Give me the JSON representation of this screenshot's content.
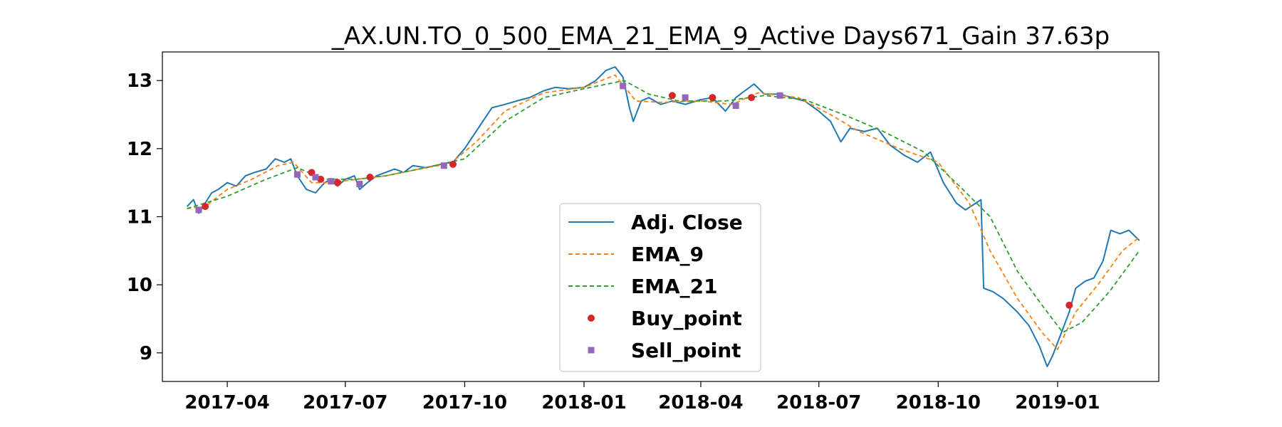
{
  "chart_data": {
    "type": "line",
    "title": "_AX.UN.TO_0_500_EMA_21_EMA_9_Active Days671_Gain  37.63p",
    "xlabel": "",
    "ylabel": "",
    "x_range": [
      "2017-02-10",
      "2019-03-20"
    ],
    "ylim": [
      8.58,
      13.42
    ],
    "y_ticks": [
      9,
      10,
      11,
      12,
      13
    ],
    "x_ticks": [
      "2017-04",
      "2017-07",
      "2017-10",
      "2018-01",
      "2018-04",
      "2018-07",
      "2018-10",
      "2019-01"
    ],
    "grid": false,
    "legend_position": "lower-center",
    "series": [
      {
        "name": "Adj. Close",
        "color": "#1f77b4",
        "style": "solid",
        "points": [
          [
            "2017-03-01",
            11.15
          ],
          [
            "2017-03-06",
            11.25
          ],
          [
            "2017-03-10",
            11.05
          ],
          [
            "2017-03-15",
            11.2
          ],
          [
            "2017-03-20",
            11.35
          ],
          [
            "2017-03-25",
            11.4
          ],
          [
            "2017-04-01",
            11.5
          ],
          [
            "2017-04-08",
            11.45
          ],
          [
            "2017-04-15",
            11.6
          ],
          [
            "2017-04-22",
            11.65
          ],
          [
            "2017-05-01",
            11.7
          ],
          [
            "2017-05-08",
            11.85
          ],
          [
            "2017-05-15",
            11.8
          ],
          [
            "2017-05-20",
            11.85
          ],
          [
            "2017-05-25",
            11.6
          ],
          [
            "2017-06-01",
            11.4
          ],
          [
            "2017-06-08",
            11.35
          ],
          [
            "2017-06-15",
            11.5
          ],
          [
            "2017-06-20",
            11.55
          ],
          [
            "2017-06-25",
            11.45
          ],
          [
            "2017-07-01",
            11.55
          ],
          [
            "2017-07-08",
            11.6
          ],
          [
            "2017-07-12",
            11.4
          ],
          [
            "2017-07-18",
            11.5
          ],
          [
            "2017-07-25",
            11.6
          ],
          [
            "2017-08-01",
            11.65
          ],
          [
            "2017-08-08",
            11.7
          ],
          [
            "2017-08-15",
            11.65
          ],
          [
            "2017-08-22",
            11.75
          ],
          [
            "2017-09-01",
            11.72
          ],
          [
            "2017-09-08",
            11.75
          ],
          [
            "2017-09-15",
            11.78
          ],
          [
            "2017-09-22",
            11.8
          ],
          [
            "2017-10-01",
            12.0
          ],
          [
            "2017-10-08",
            12.2
          ],
          [
            "2017-10-15",
            12.4
          ],
          [
            "2017-10-22",
            12.6
          ],
          [
            "2017-11-01",
            12.65
          ],
          [
            "2017-11-10",
            12.7
          ],
          [
            "2017-11-20",
            12.75
          ],
          [
            "2017-12-01",
            12.85
          ],
          [
            "2017-12-10",
            12.9
          ],
          [
            "2017-12-20",
            12.88
          ],
          [
            "2018-01-01",
            12.9
          ],
          [
            "2018-01-10",
            13.0
          ],
          [
            "2018-01-18",
            13.15
          ],
          [
            "2018-01-25",
            13.2
          ],
          [
            "2018-01-31",
            13.05
          ],
          [
            "2018-02-05",
            12.6
          ],
          [
            "2018-02-08",
            12.4
          ],
          [
            "2018-02-14",
            12.7
          ],
          [
            "2018-02-20",
            12.75
          ],
          [
            "2018-03-01",
            12.65
          ],
          [
            "2018-03-10",
            12.7
          ],
          [
            "2018-03-20",
            12.65
          ],
          [
            "2018-04-01",
            12.72
          ],
          [
            "2018-04-10",
            12.75
          ],
          [
            "2018-04-15",
            12.65
          ],
          [
            "2018-04-20",
            12.55
          ],
          [
            "2018-04-28",
            12.75
          ],
          [
            "2018-05-05",
            12.85
          ],
          [
            "2018-05-12",
            12.95
          ],
          [
            "2018-05-20",
            12.8
          ],
          [
            "2018-06-01",
            12.8
          ],
          [
            "2018-06-10",
            12.75
          ],
          [
            "2018-06-20",
            12.7
          ],
          [
            "2018-07-01",
            12.55
          ],
          [
            "2018-07-10",
            12.4
          ],
          [
            "2018-07-18",
            12.1
          ],
          [
            "2018-07-25",
            12.3
          ],
          [
            "2018-08-05",
            12.25
          ],
          [
            "2018-08-15",
            12.3
          ],
          [
            "2018-08-25",
            12.05
          ],
          [
            "2018-09-05",
            11.9
          ],
          [
            "2018-09-15",
            11.8
          ],
          [
            "2018-09-25",
            11.95
          ],
          [
            "2018-10-05",
            11.5
          ],
          [
            "2018-10-15",
            11.2
          ],
          [
            "2018-10-22",
            11.1
          ],
          [
            "2018-10-30",
            11.2
          ],
          [
            "2018-11-03",
            11.25
          ],
          [
            "2018-11-05",
            9.95
          ],
          [
            "2018-11-12",
            9.9
          ],
          [
            "2018-11-20",
            9.8
          ],
          [
            "2018-12-01",
            9.6
          ],
          [
            "2018-12-10",
            9.4
          ],
          [
            "2018-12-18",
            9.1
          ],
          [
            "2018-12-24",
            8.8
          ],
          [
            "2018-12-28",
            8.95
          ],
          [
            "2019-01-04",
            9.3
          ],
          [
            "2019-01-10",
            9.6
          ],
          [
            "2019-01-15",
            9.95
          ],
          [
            "2019-01-22",
            10.05
          ],
          [
            "2019-01-29",
            10.1
          ],
          [
            "2019-02-05",
            10.35
          ],
          [
            "2019-02-11",
            10.8
          ],
          [
            "2019-02-18",
            10.75
          ],
          [
            "2019-02-25",
            10.8
          ],
          [
            "2019-03-05",
            10.65
          ]
        ]
      },
      {
        "name": "EMA_9",
        "color": "#ff7f0e",
        "style": "dashed",
        "points": [
          [
            "2017-03-01",
            11.12
          ],
          [
            "2017-03-15",
            11.15
          ],
          [
            "2017-04-01",
            11.4
          ],
          [
            "2017-04-20",
            11.55
          ],
          [
            "2017-05-10",
            11.75
          ],
          [
            "2017-05-22",
            11.8
          ],
          [
            "2017-06-05",
            11.5
          ],
          [
            "2017-06-20",
            11.5
          ],
          [
            "2017-07-10",
            11.55
          ],
          [
            "2017-08-01",
            11.6
          ],
          [
            "2017-09-01",
            11.72
          ],
          [
            "2017-09-20",
            11.78
          ],
          [
            "2017-10-10",
            12.1
          ],
          [
            "2017-11-01",
            12.55
          ],
          [
            "2017-12-01",
            12.82
          ],
          [
            "2018-01-01",
            12.9
          ],
          [
            "2018-01-25",
            13.08
          ],
          [
            "2018-02-10",
            12.7
          ],
          [
            "2018-03-01",
            12.68
          ],
          [
            "2018-04-01",
            12.7
          ],
          [
            "2018-04-25",
            12.65
          ],
          [
            "2018-05-15",
            12.82
          ],
          [
            "2018-06-15",
            12.75
          ],
          [
            "2018-07-10",
            12.5
          ],
          [
            "2018-08-01",
            12.25
          ],
          [
            "2018-09-01",
            12.0
          ],
          [
            "2018-10-01",
            11.8
          ],
          [
            "2018-10-25",
            11.2
          ],
          [
            "2018-11-10",
            10.5
          ],
          [
            "2018-12-01",
            9.8
          ],
          [
            "2018-12-20",
            9.3
          ],
          [
            "2019-01-01",
            9.05
          ],
          [
            "2019-01-15",
            9.6
          ],
          [
            "2019-02-01",
            10.0
          ],
          [
            "2019-02-20",
            10.5
          ],
          [
            "2019-03-05",
            10.7
          ]
        ]
      },
      {
        "name": "EMA_21",
        "color": "#2ca02c",
        "style": "dashed",
        "points": [
          [
            "2017-03-01",
            11.12
          ],
          [
            "2017-04-01",
            11.3
          ],
          [
            "2017-05-01",
            11.55
          ],
          [
            "2017-05-25",
            11.72
          ],
          [
            "2017-06-15",
            11.55
          ],
          [
            "2017-07-10",
            11.55
          ],
          [
            "2017-08-01",
            11.6
          ],
          [
            "2017-09-01",
            11.72
          ],
          [
            "2017-10-01",
            11.85
          ],
          [
            "2017-11-01",
            12.4
          ],
          [
            "2017-12-01",
            12.75
          ],
          [
            "2018-01-01",
            12.88
          ],
          [
            "2018-02-01",
            13.0
          ],
          [
            "2018-02-20",
            12.8
          ],
          [
            "2018-03-15",
            12.7
          ],
          [
            "2018-04-20",
            12.7
          ],
          [
            "2018-05-20",
            12.78
          ],
          [
            "2018-06-20",
            12.72
          ],
          [
            "2018-07-20",
            12.5
          ],
          [
            "2018-08-20",
            12.25
          ],
          [
            "2018-09-20",
            11.95
          ],
          [
            "2018-10-20",
            11.4
          ],
          [
            "2018-11-10",
            11.0
          ],
          [
            "2018-12-01",
            10.2
          ],
          [
            "2018-12-20",
            9.7
          ],
          [
            "2019-01-05",
            9.3
          ],
          [
            "2019-01-20",
            9.45
          ],
          [
            "2019-02-10",
            9.9
          ],
          [
            "2019-03-05",
            10.5
          ]
        ]
      }
    ],
    "markers": [
      {
        "name": "Buy_point",
        "color": "#d62728",
        "shape": "circle",
        "points": [
          [
            "2017-03-15",
            11.15
          ],
          [
            "2017-06-05",
            11.65
          ],
          [
            "2017-06-12",
            11.55
          ],
          [
            "2017-06-25",
            11.5
          ],
          [
            "2017-07-20",
            11.58
          ],
          [
            "2017-09-22",
            11.77
          ],
          [
            "2018-03-10",
            12.78
          ],
          [
            "2018-04-10",
            12.75
          ],
          [
            "2018-05-10",
            12.75
          ],
          [
            "2019-01-10",
            9.7
          ]
        ]
      },
      {
        "name": "Sell_point",
        "color": "#9467bd",
        "shape": "square",
        "points": [
          [
            "2017-03-10",
            11.1
          ],
          [
            "2017-05-25",
            11.62
          ],
          [
            "2017-06-08",
            11.58
          ],
          [
            "2017-06-20",
            11.52
          ],
          [
            "2017-07-12",
            11.48
          ],
          [
            "2017-09-15",
            11.75
          ],
          [
            "2018-01-31",
            12.92
          ],
          [
            "2018-03-20",
            12.75
          ],
          [
            "2018-04-28",
            12.63
          ],
          [
            "2018-06-01",
            12.78
          ]
        ]
      }
    ]
  }
}
